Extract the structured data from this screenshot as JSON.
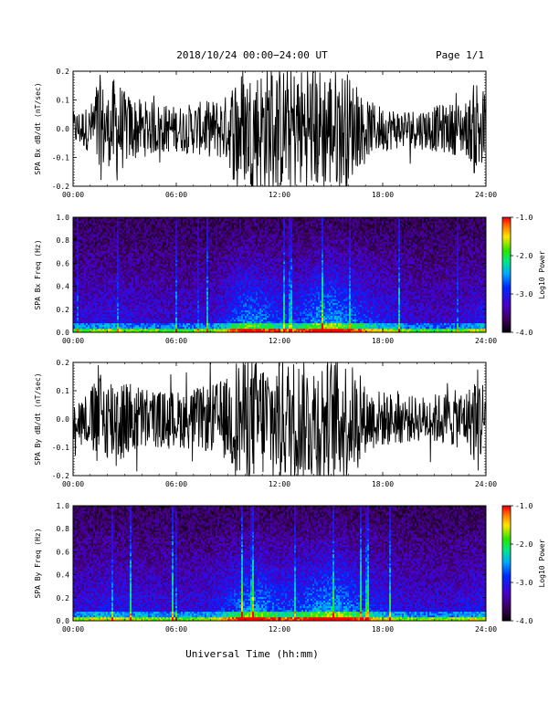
{
  "header": {
    "title": "2018/10/24  00:00−24:00 UT",
    "page": "Page 1/1"
  },
  "xaxis_label": "Universal Time (hh:mm)",
  "chart_data": [
    {
      "type": "line",
      "panel": "bx-waveform",
      "ylabel": "SPA Bx dB/dt (nT/sec)",
      "xlim": [
        0,
        24
      ],
      "ylim": [
        -0.2,
        0.2
      ],
      "x_ticks": [
        "00:00",
        "06:00",
        "12:00",
        "18:00",
        "24:00"
      ],
      "y_ticks": [
        "-0.2",
        "-0.1",
        "0.0",
        "0.1",
        "0.2"
      ],
      "envelope_hours": [
        0,
        1,
        1.5,
        2,
        2.5,
        3,
        4,
        5,
        6,
        7,
        8,
        9,
        9.5,
        10,
        11,
        12,
        13,
        14,
        15,
        16,
        16.5,
        17,
        18,
        19,
        20,
        21,
        22,
        23,
        23.5,
        24
      ],
      "envelope_amplitude": [
        0.06,
        0.08,
        0.2,
        0.12,
        0.2,
        0.13,
        0.1,
        0.09,
        0.08,
        0.09,
        0.1,
        0.12,
        0.22,
        0.2,
        0.22,
        0.22,
        0.22,
        0.22,
        0.22,
        0.2,
        0.14,
        0.1,
        0.08,
        0.07,
        0.07,
        0.08,
        0.09,
        0.1,
        0.2,
        0.12
      ]
    },
    {
      "type": "heatmap",
      "panel": "bx-spectrogram",
      "ylabel": "SPA Bx Freq (Hz)",
      "xlim": [
        0,
        24
      ],
      "ylim": [
        0,
        1.0
      ],
      "x_ticks": [
        "00:00",
        "06:00",
        "12:00",
        "18:00",
        "24:00"
      ],
      "y_ticks": [
        "0.0",
        "0.2",
        "0.4",
        "0.6",
        "0.8",
        "1.0"
      ],
      "colorbar": {
        "label": "Log10 Power",
        "range": [
          -4.0,
          -1.0
        ],
        "ticks": [
          "-1.0",
          "-2.0",
          "-3.0",
          "-4.0"
        ]
      },
      "activity_hours": [
        0,
        2,
        4,
        6,
        8,
        9,
        10,
        11,
        12,
        13,
        14,
        15,
        16,
        17,
        18,
        19,
        20,
        22,
        24
      ],
      "activity_level": [
        0.3,
        0.4,
        0.35,
        0.3,
        0.35,
        0.5,
        0.75,
        0.7,
        0.55,
        0.55,
        0.75,
        0.85,
        0.7,
        0.55,
        0.45,
        0.4,
        0.3,
        0.3,
        0.45
      ]
    },
    {
      "type": "line",
      "panel": "by-waveform",
      "ylabel": "SPA By dB/dt (nT/sec)",
      "xlim": [
        0,
        24
      ],
      "ylim": [
        -0.2,
        0.2
      ],
      "x_ticks": [
        "00:00",
        "06:00",
        "12:00",
        "18:00",
        "24:00"
      ],
      "y_ticks": [
        "-0.2",
        "-0.1",
        "0.0",
        "0.1",
        "0.2"
      ],
      "envelope_hours": [
        0,
        1,
        1.5,
        2,
        2.5,
        3,
        4,
        5,
        6,
        7,
        8,
        9,
        9.5,
        10,
        11,
        12,
        13,
        14,
        15,
        16,
        16.5,
        17,
        18,
        19,
        20,
        21,
        22,
        23,
        23.5,
        24
      ],
      "envelope_amplitude": [
        0.07,
        0.1,
        0.2,
        0.14,
        0.2,
        0.14,
        0.12,
        0.1,
        0.1,
        0.11,
        0.12,
        0.15,
        0.22,
        0.22,
        0.22,
        0.22,
        0.22,
        0.22,
        0.22,
        0.22,
        0.16,
        0.12,
        0.1,
        0.09,
        0.08,
        0.09,
        0.1,
        0.11,
        0.2,
        0.12
      ]
    },
    {
      "type": "heatmap",
      "panel": "by-spectrogram",
      "ylabel": "SPA By Freq (Hz)",
      "xlim": [
        0,
        24
      ],
      "ylim": [
        0,
        1.0
      ],
      "x_ticks": [
        "00:00",
        "06:00",
        "12:00",
        "18:00",
        "24:00"
      ],
      "y_ticks": [
        "0.0",
        "0.2",
        "0.4",
        "0.6",
        "0.8",
        "1.0"
      ],
      "colorbar": {
        "label": "Log10 Power",
        "range": [
          -4.0,
          -1.0
        ],
        "ticks": [
          "-1.0",
          "-2.0",
          "-3.0",
          "-4.0"
        ]
      },
      "activity_hours": [
        0,
        2,
        4,
        6,
        8,
        9,
        10,
        11,
        12,
        13,
        14,
        15,
        16,
        17,
        18,
        19,
        20,
        22,
        24
      ],
      "activity_level": [
        0.35,
        0.45,
        0.4,
        0.35,
        0.4,
        0.55,
        0.75,
        0.75,
        0.6,
        0.6,
        0.75,
        0.85,
        0.75,
        0.55,
        0.45,
        0.4,
        0.35,
        0.35,
        0.45
      ]
    }
  ]
}
